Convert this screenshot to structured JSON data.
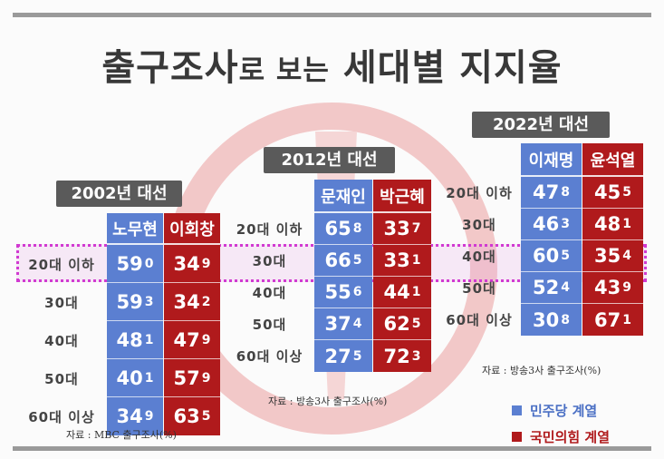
{
  "title": {
    "main_a": "출구조사",
    "main_b": "로 보는",
    "main_c": "세대별 지지율"
  },
  "legend": [
    {
      "label": "민주당 계열",
      "color": "#5b7fd1",
      "text_color": "#4a6fc4"
    },
    {
      "label": "국민의힘 계열",
      "color": "#b01a1c",
      "text_color": "#b01a1c"
    }
  ],
  "colors": {
    "democratic": "#5b7fd1",
    "ppp": "#b01a1c",
    "highlight": "#d13ad1"
  },
  "chart_data": [
    {
      "type": "table",
      "title": "2002년 대선",
      "source": "자료 : MBC 출구조사(%)",
      "candidates": [
        {
          "name": "노무현",
          "party": "민주당 계열"
        },
        {
          "name": "이회창",
          "party": "국민의힘 계열"
        }
      ],
      "rows": [
        {
          "label": "20대 이하",
          "values": [
            "59.0",
            "34.9"
          ]
        },
        {
          "label": "30대",
          "values": [
            "59.3",
            "34.2"
          ]
        },
        {
          "label": "40대",
          "values": [
            "48.1",
            "47.9"
          ]
        },
        {
          "label": "50대",
          "values": [
            "40.1",
            "57.9"
          ]
        },
        {
          "label": "60대 이상",
          "values": [
            "34.9",
            "63.5"
          ]
        }
      ]
    },
    {
      "type": "table",
      "title": "2012년 대선",
      "source": "자료 : 방송3사 출구조사(%)",
      "candidates": [
        {
          "name": "문재인",
          "party": "민주당 계열"
        },
        {
          "name": "박근혜",
          "party": "국민의힘 계열"
        }
      ],
      "rows": [
        {
          "label": "20대 이하",
          "values": [
            "65.8",
            "33.7"
          ]
        },
        {
          "label": "30대",
          "values": [
            "66.5",
            "33.1"
          ]
        },
        {
          "label": "40대",
          "values": [
            "55.6",
            "44.1"
          ]
        },
        {
          "label": "50대",
          "values": [
            "37.4",
            "62.5"
          ]
        },
        {
          "label": "60대 이상",
          "values": [
            "27.5",
            "72.3"
          ]
        }
      ]
    },
    {
      "type": "table",
      "title": "2022년 대선",
      "source": "자료 : 방송3사 출구조사(%)",
      "candidates": [
        {
          "name": "이재명",
          "party": "민주당 계열"
        },
        {
          "name": "윤석열",
          "party": "국민의힘 계열"
        }
      ],
      "rows": [
        {
          "label": "20대 이하",
          "values": [
            "47.8",
            "45.5"
          ]
        },
        {
          "label": "30대",
          "values": [
            "46.3",
            "48.1"
          ]
        },
        {
          "label": "40대",
          "values": [
            "60.5",
            "35.4"
          ]
        },
        {
          "label": "50대",
          "values": [
            "52.4",
            "43.9"
          ]
        },
        {
          "label": "60대 이상",
          "values": [
            "30.8",
            "67.1"
          ]
        }
      ]
    }
  ]
}
